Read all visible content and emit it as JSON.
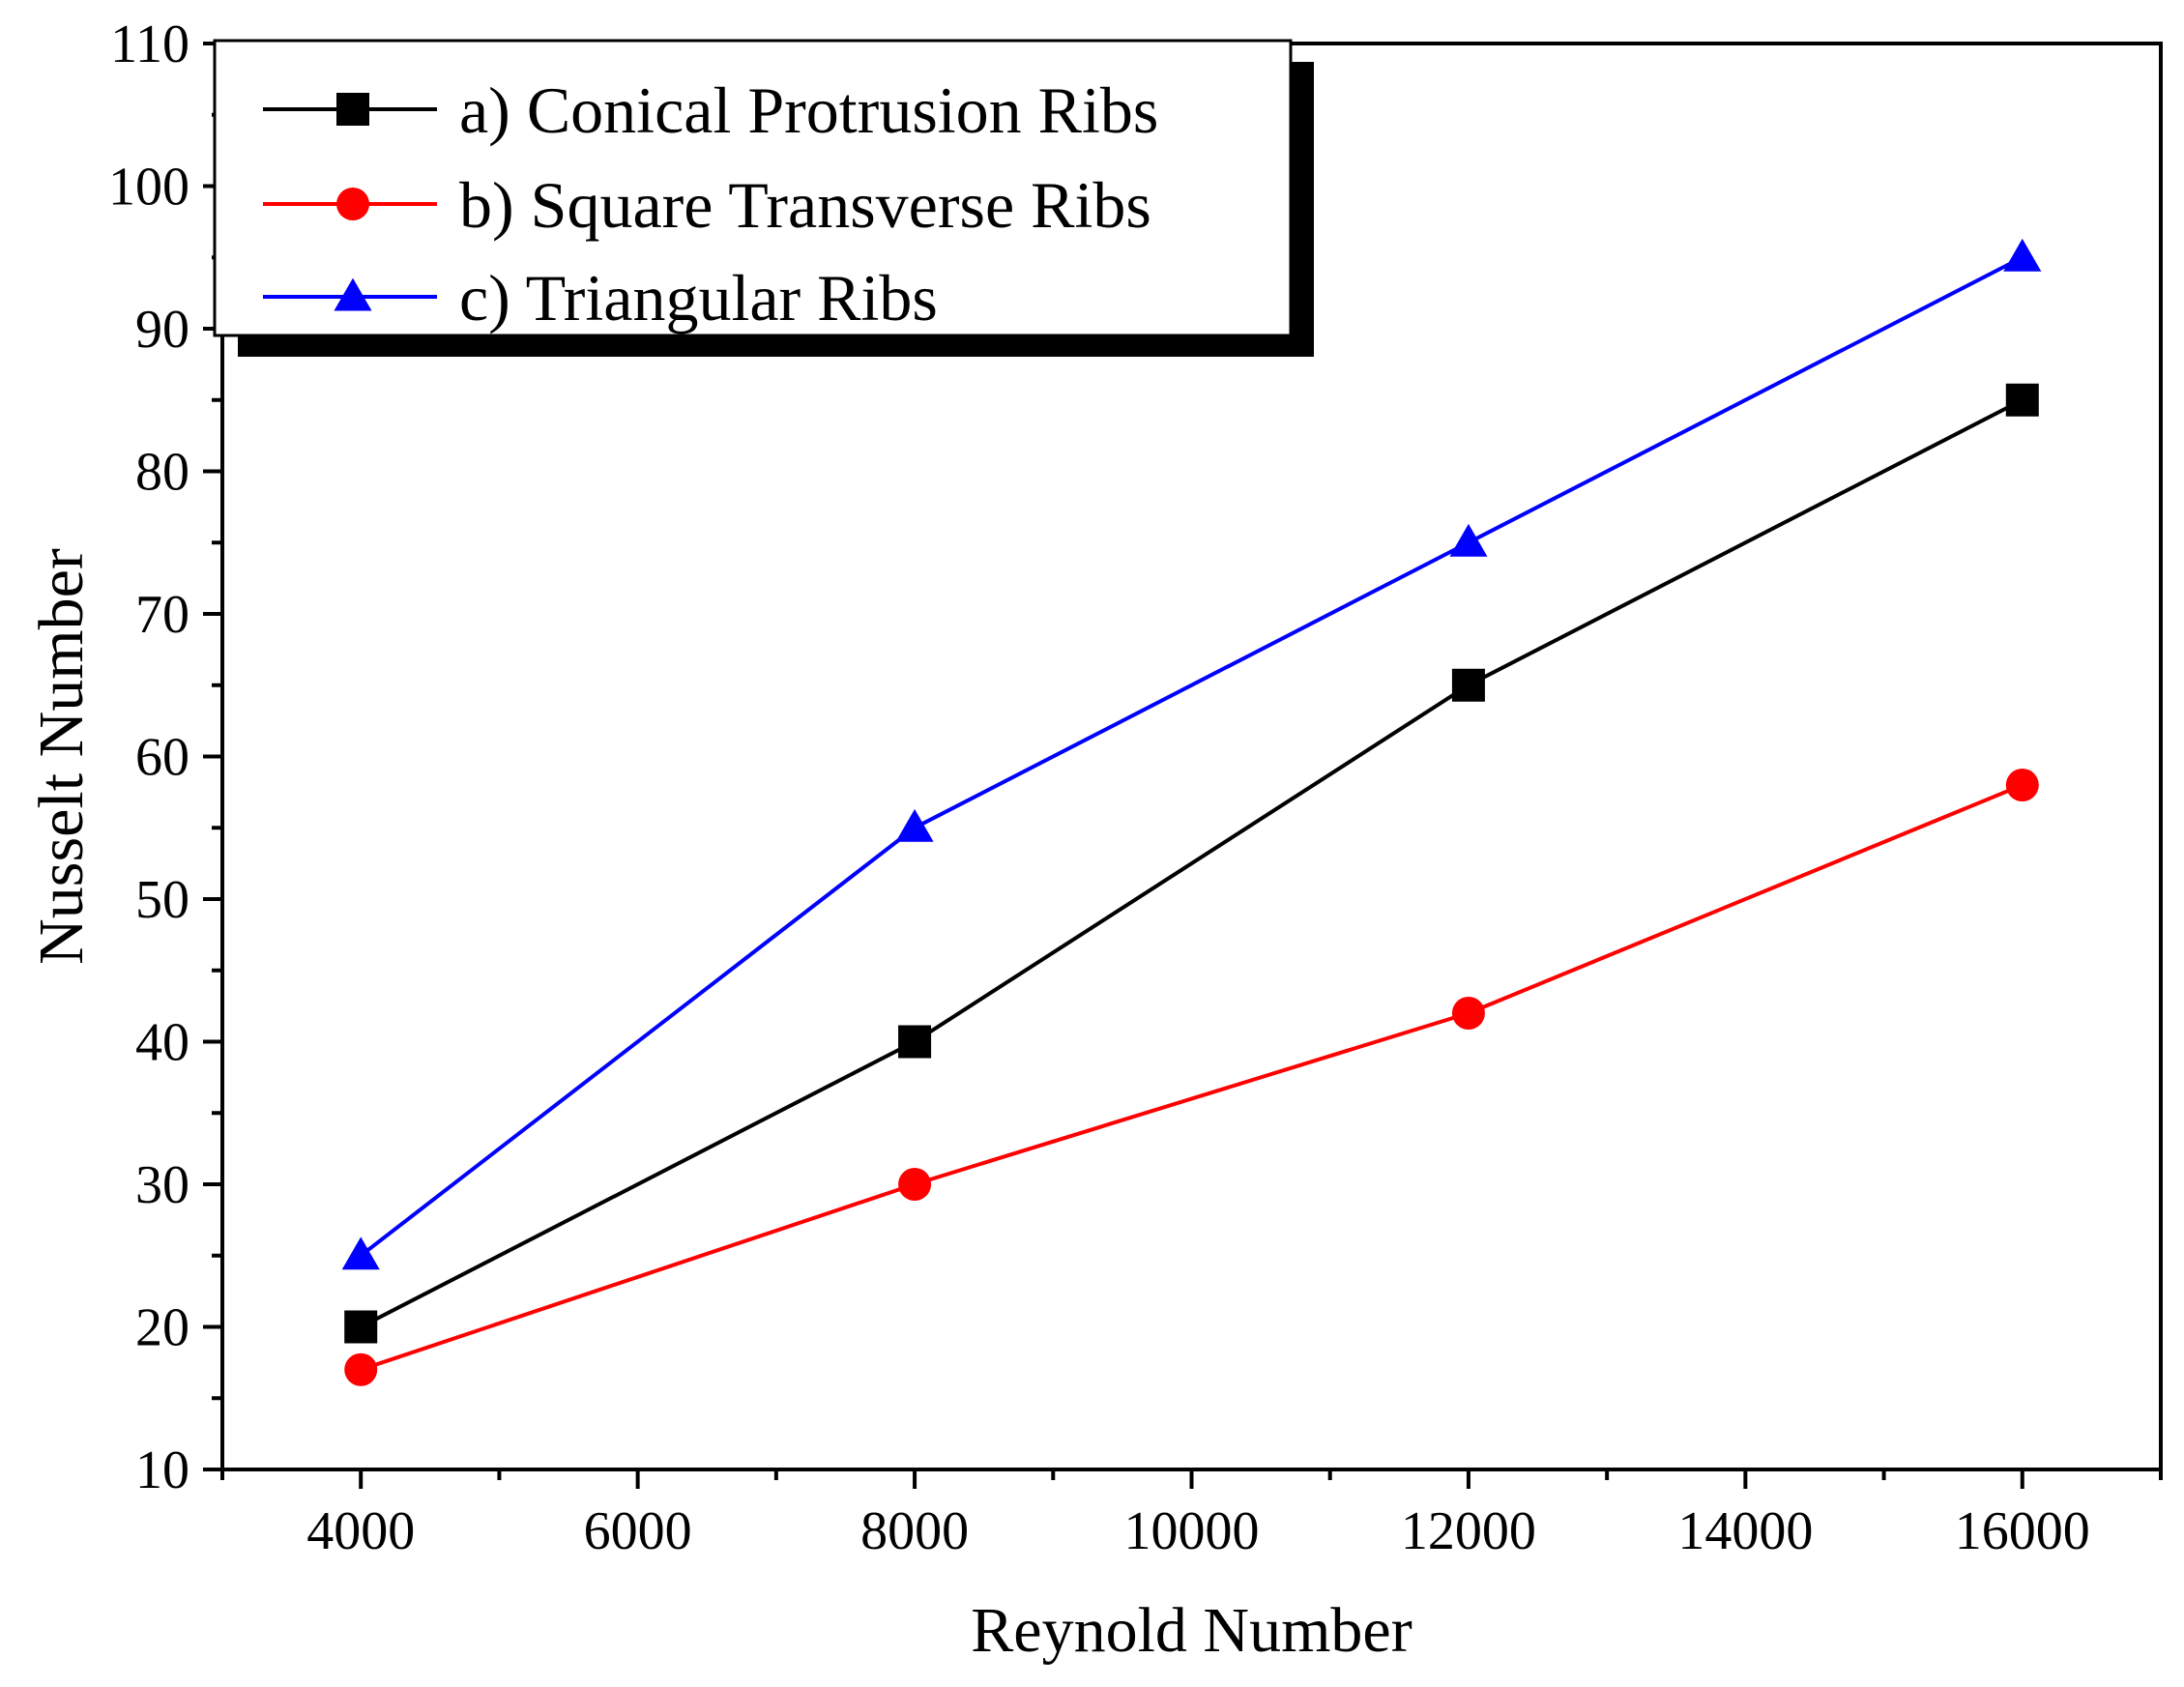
{
  "chart_data": {
    "type": "line",
    "title": "",
    "xlabel": "Reynold Number",
    "ylabel": "Nusselt Number",
    "xlim": [
      3000,
      17000
    ],
    "ylim": [
      10,
      110
    ],
    "x_ticks": [
      4000,
      6000,
      8000,
      10000,
      12000,
      14000,
      16000
    ],
    "x_tick_labels": [
      "4000",
      "6000",
      "8000",
      "10000",
      "12000",
      "14000",
      "16000"
    ],
    "y_ticks": [
      10,
      20,
      30,
      40,
      50,
      60,
      70,
      80,
      90,
      100,
      110
    ],
    "y_tick_labels": [
      "10",
      "20",
      "30",
      "40",
      "50",
      "60",
      "70",
      "80",
      "90",
      "100",
      "110"
    ],
    "grid": false,
    "legend_position": "top-left",
    "x": [
      4000,
      8000,
      12000,
      16000
    ],
    "series": [
      {
        "name": "a) Conical Protrusion Ribs",
        "values": [
          20,
          40,
          65,
          85
        ],
        "color": "#000000",
        "marker": "square"
      },
      {
        "name": "b) Square Transverse Ribs",
        "values": [
          17,
          30,
          42,
          58
        ],
        "color": "#ff0000",
        "marker": "circle"
      },
      {
        "name": "c) Triangular Ribs",
        "values": [
          25,
          55,
          75,
          95
        ],
        "color": "#0000ff",
        "marker": "triangle"
      }
    ]
  }
}
